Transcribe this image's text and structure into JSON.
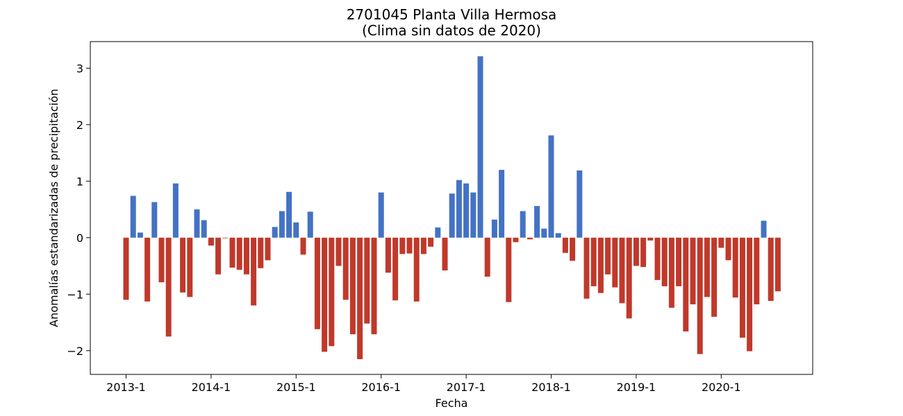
{
  "chart_data": {
    "type": "bar",
    "title": "2701045 Planta Villa Hermosa",
    "subtitle": "(Clima sin datos de 2020)",
    "xlabel": "Fecha",
    "ylabel": "Anomalías estandarizadas de precipitación",
    "x_tick_labels": [
      "2013-1",
      "2014-1",
      "2015-1",
      "2016-1",
      "2017-1",
      "2018-1",
      "2019-1",
      "2020-1"
    ],
    "y_ticks": [
      3,
      2,
      1,
      0,
      -1,
      -2
    ],
    "y_tick_labels": [
      "3",
      "2",
      "1",
      "0",
      "−1",
      "−2"
    ],
    "ylim": [
      -2.42,
      3.47
    ],
    "start": "2013-1",
    "values": [
      -1.1,
      0.74,
      0.09,
      -1.13,
      0.63,
      -0.79,
      -1.75,
      0.96,
      -0.97,
      -1.05,
      0.5,
      0.31,
      -0.14,
      -0.65,
      -0.01,
      -0.53,
      -0.57,
      -0.65,
      -1.2,
      -0.54,
      -0.4,
      0.19,
      0.47,
      0.81,
      0.27,
      -0.3,
      0.46,
      -1.62,
      -2.02,
      -1.92,
      -0.5,
      -1.1,
      -1.71,
      -2.15,
      -1.52,
      -1.71,
      0.8,
      -0.62,
      -1.11,
      -0.29,
      -0.28,
      -1.13,
      -0.29,
      -0.16,
      0.18,
      -0.58,
      0.78,
      1.02,
      0.96,
      0.8,
      3.21,
      -0.69,
      0.32,
      1.2,
      -1.14,
      -0.08,
      0.47,
      -0.03,
      0.56,
      0.16,
      1.81,
      0.08,
      -0.27,
      -0.41,
      1.19,
      -1.08,
      -0.86,
      -0.98,
      -0.65,
      -0.88,
      -1.16,
      -1.43,
      -0.5,
      -0.52,
      -0.05,
      -0.75,
      -0.86,
      -1.24,
      -0.86,
      -1.66,
      -1.18,
      -2.06,
      -1.05,
      -1.4,
      -0.18,
      -0.4,
      -1.06,
      -1.77,
      -2.01,
      -1.18,
      0.3,
      -1.12,
      -0.95
    ],
    "colors": {
      "positive": "#4472c4",
      "negative": "#c0392b"
    },
    "grid": false,
    "legend": "none"
  }
}
